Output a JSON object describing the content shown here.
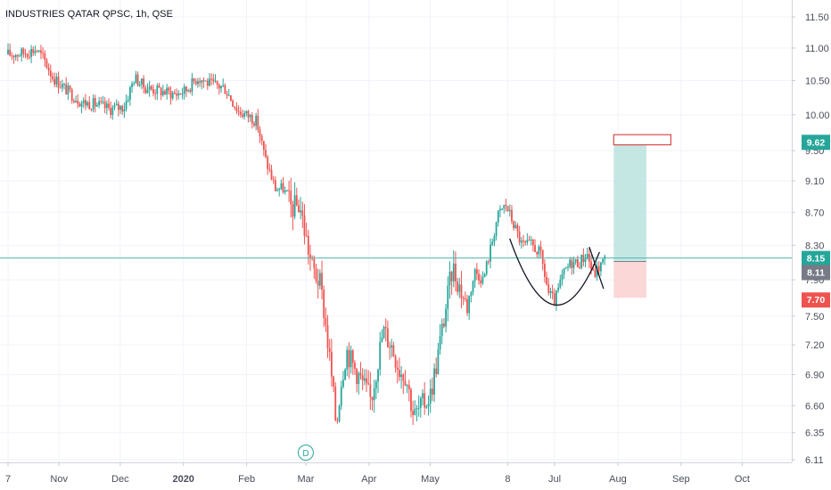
{
  "title": "INDUSTRIES QATAR QPSC, 1h, QSE",
  "colors": {
    "up": "#26a69a",
    "down": "#ef5350",
    "grid": "#f0f3fa",
    "axis_text": "#4a4e5a",
    "price_line": "#4db6ac",
    "target_box": "#d84a4a",
    "profit_zone": "#b2dfdb",
    "loss_zone": "#fbd3d3",
    "pattern_line": "#131722",
    "label_current": "#26a69a",
    "label_target": "#26a69a",
    "label_stop": "#ef5350",
    "label_entry": "#787b86"
  },
  "chart_data": {
    "type": "candlestick",
    "title": "INDUSTRIES QATAR QPSC, 1h, QSE",
    "y_ticks": [
      "11.50",
      "11.00",
      "10.50",
      "10.00",
      "9.50",
      "9.10",
      "8.70",
      "8.30",
      "7.90",
      "7.50",
      "7.20",
      "6.90",
      "6.60",
      "6.35",
      "6.11"
    ],
    "y_scale": "log",
    "x_ticks": [
      "7",
      "Nov",
      "Dec",
      "2020",
      "Feb",
      "Mar",
      "Apr",
      "May",
      "8",
      "Jul",
      "Aug",
      "Sep",
      "Oct"
    ],
    "grid": true,
    "price_path": [
      [
        "2019-10-07",
        10.9
      ],
      [
        "2019-10-14",
        10.92
      ],
      [
        "2019-10-21",
        10.98
      ],
      [
        "2019-10-25",
        10.8
      ],
      [
        "2019-10-29",
        10.55
      ],
      [
        "2019-11-05",
        10.35
      ],
      [
        "2019-11-12",
        10.18
      ],
      [
        "2019-11-19",
        10.15
      ],
      [
        "2019-11-26",
        10.08
      ],
      [
        "2019-12-03",
        10.12
      ],
      [
        "2019-12-08",
        10.55
      ],
      [
        "2019-12-13",
        10.4
      ],
      [
        "2019-12-20",
        10.35
      ],
      [
        "2019-12-28",
        10.3
      ],
      [
        "2020-01-02",
        10.35
      ],
      [
        "2020-01-08",
        10.55
      ],
      [
        "2020-01-14",
        10.45
      ],
      [
        "2020-01-21",
        10.4
      ],
      [
        "2020-01-28",
        10.05
      ],
      [
        "2020-02-03",
        9.97
      ],
      [
        "2020-02-06",
        9.9
      ],
      [
        "2020-02-10",
        9.4
      ],
      [
        "2020-02-15",
        9.0
      ],
      [
        "2020-02-19",
        9.0
      ],
      [
        "2020-02-23",
        8.75
      ],
      [
        "2020-02-27",
        8.8
      ],
      [
        "2020-03-01",
        8.4
      ],
      [
        "2020-03-04",
        8.05
      ],
      [
        "2020-03-08",
        7.85
      ],
      [
        "2020-03-10",
        7.55
      ],
      [
        "2020-03-13",
        7.0
      ],
      [
        "2020-03-16",
        6.4
      ],
      [
        "2020-03-18",
        6.8
      ],
      [
        "2020-03-21",
        7.15
      ],
      [
        "2020-03-24",
        7.0
      ],
      [
        "2020-03-28",
        6.85
      ],
      [
        "2020-04-02",
        6.65
      ],
      [
        "2020-04-05",
        7.0
      ],
      [
        "2020-04-08",
        7.35
      ],
      [
        "2020-04-12",
        7.2
      ],
      [
        "2020-04-16",
        6.95
      ],
      [
        "2020-04-19",
        6.9
      ],
      [
        "2020-04-23",
        6.5
      ],
      [
        "2020-04-27",
        6.6
      ],
      [
        "2020-05-01",
        6.7
      ],
      [
        "2020-05-04",
        7.0
      ],
      [
        "2020-05-08",
        7.5
      ],
      [
        "2020-05-12",
        8.05
      ],
      [
        "2020-05-15",
        7.85
      ],
      [
        "2020-05-19",
        7.6
      ],
      [
        "2020-05-23",
        8.0
      ],
      [
        "2020-05-27",
        7.9
      ],
      [
        "2020-05-31",
        8.3
      ],
      [
        "2020-06-03",
        8.65
      ],
      [
        "2020-06-07",
        8.8
      ],
      [
        "2020-06-11",
        8.55
      ],
      [
        "2020-06-15",
        8.3
      ],
      [
        "2020-06-20",
        8.3
      ],
      [
        "2020-06-24",
        8.2
      ],
      [
        "2020-06-28",
        7.75
      ],
      [
        "2020-07-01",
        7.65
      ],
      [
        "2020-07-05",
        7.95
      ],
      [
        "2020-07-09",
        8.1
      ],
      [
        "2020-07-13",
        8.1
      ],
      [
        "2020-07-17",
        8.2
      ],
      [
        "2020-07-20",
        7.95
      ],
      [
        "2020-07-23",
        8.05
      ],
      [
        "2020-07-26",
        8.15
      ]
    ],
    "dividend_marker": {
      "date": "2020-03-01",
      "label": "D"
    },
    "current_price": {
      "value": 8.15,
      "label": "8.15"
    },
    "price_labels": [
      {
        "value": 9.62,
        "label": "9.62",
        "kind": "target"
      },
      {
        "value": 8.15,
        "label": "8.15",
        "kind": "current"
      },
      {
        "value": 8.11,
        "label": "8.11",
        "kind": "entry"
      },
      {
        "value": 7.7,
        "label": "7.70",
        "kind": "stop"
      }
    ],
    "position": {
      "start": "2020-07-30",
      "end": "2020-08-15",
      "entry": 8.11,
      "target": 9.62,
      "stop": 7.7
    },
    "target_box": {
      "start": "2020-07-30",
      "end": "2020-08-27",
      "top": 9.72,
      "bottom": 9.58
    },
    "drawings": {
      "cup_curve": {
        "start": [
          "2020-06-09",
          8.38
        ],
        "control": [
          "2020-07-01",
          7.0
        ],
        "end": [
          "2020-07-23",
          8.22
        ]
      },
      "handle_line": {
        "start": [
          "2020-07-18",
          8.28
        ],
        "end": [
          "2020-07-25",
          7.8
        ]
      }
    }
  }
}
